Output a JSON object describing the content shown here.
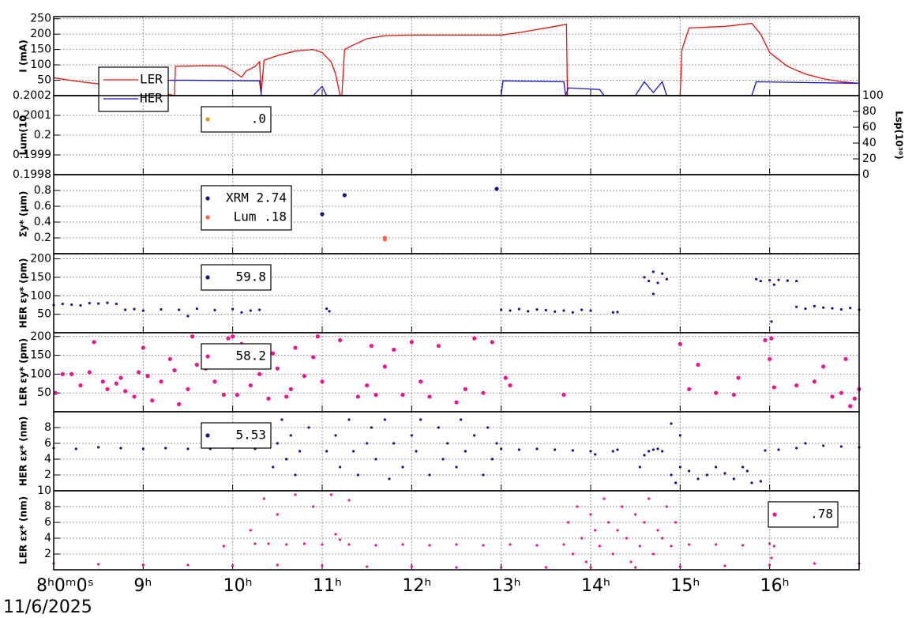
{
  "chart_data": [
    {
      "type": "line",
      "ylabel": "I (mA)",
      "ylim": [
        0,
        257
      ],
      "yticks": [
        50,
        100,
        150,
        200,
        250
      ],
      "grid": true,
      "legend": "lower left",
      "series": [
        {
          "name": "LER",
          "color": "#e8100c",
          "x": [
            8.0,
            8.3,
            8.6,
            8.9,
            9.2,
            9.35,
            9.36,
            9.7,
            9.9,
            10.0,
            10.1,
            10.15,
            10.25,
            10.3,
            10.32,
            10.35,
            10.5,
            10.7,
            10.9,
            11.0,
            11.1,
            11.15,
            11.2,
            11.22,
            11.25,
            11.35,
            11.5,
            11.7,
            12.0,
            12.5,
            13.0,
            13.2,
            13.4,
            13.6,
            13.73,
            13.74,
            14.5,
            15.0,
            15.02,
            15.1,
            15.5,
            15.8,
            15.9,
            16.0,
            16.2,
            16.4,
            16.6,
            16.8,
            17.0
          ],
          "values": [
            58,
            45,
            35,
            25,
            10,
            0,
            95,
            97,
            96,
            80,
            60,
            80,
            95,
            110,
            10,
            115,
            130,
            145,
            150,
            140,
            110,
            70,
            0,
            0,
            150,
            165,
            185,
            195,
            197,
            197,
            197,
            205,
            215,
            225,
            232,
            0,
            0,
            0,
            150,
            220,
            225,
            235,
            200,
            140,
            95,
            70,
            55,
            45,
            40
          ]
        },
        {
          "name": "HER",
          "color": "#1414c8",
          "x": [
            8.0,
            8.85,
            8.87,
            9.5,
            10.3,
            10.32,
            10.9,
            11.0,
            11.05,
            13.0,
            13.02,
            13.7,
            13.72,
            13.75,
            14.1,
            14.15,
            14.5,
            14.6,
            14.7,
            14.8,
            14.85,
            15.8,
            15.85,
            17.0
          ],
          "values": [
            0,
            0,
            50,
            50,
            48,
            0,
            0,
            30,
            0,
            0,
            48,
            45,
            0,
            25,
            20,
            0,
            0,
            45,
            10,
            45,
            0,
            0,
            45,
            40
          ]
        }
      ]
    },
    {
      "type": "scatter",
      "ylabel": "Lum(10",
      "ylim": [
        0.1998,
        0.2002
      ],
      "yticks": [
        0.1998,
        0.1999,
        0.2,
        0.2001,
        0.2002
      ],
      "y2label": "Lsp(10³⁰)",
      "y2lim": [
        0,
        100
      ],
      "y2ticks": [
        0,
        20,
        40,
        60,
        80,
        100
      ],
      "grid": true,
      "legend": "upper left",
      "series": [
        {
          "name": ".0",
          "color": "#d4a017",
          "x": [],
          "values": []
        }
      ]
    },
    {
      "type": "scatter",
      "ylabel": "Σy* (μm)",
      "ylim": [
        0,
        1
      ],
      "yticks": [
        0.2,
        0.4,
        0.6,
        0.8
      ],
      "grid": true,
      "legend": "upper left",
      "series": [
        {
          "name": "XRM 2.74",
          "color": "#14148c",
          "x": [
            11.0,
            11.25,
            12.95
          ],
          "values": [
            0.5,
            0.74,
            0.82
          ]
        },
        {
          "name": "Lum  .18",
          "color": "#ff6347",
          "x": [
            11.7,
            11.7
          ],
          "values": [
            0.18,
            0.2
          ]
        }
      ]
    },
    {
      "type": "scatter",
      "ylabel": "HER εy* (pm)",
      "ylim": [
        0,
        214
      ],
      "yticks": [
        50,
        100,
        150,
        200
      ],
      "grid": true,
      "legend": "upper left",
      "series": [
        {
          "name": "59.8",
          "color": "#14148c",
          "x": [
            8.0,
            8.1,
            8.2,
            8.3,
            8.4,
            8.5,
            8.6,
            8.7,
            8.8,
            8.9,
            9.0,
            9.2,
            9.4,
            9.6,
            9.8,
            10.0,
            10.2,
            10.3,
            11.05,
            11.08,
            13.0,
            13.1,
            13.2,
            13.3,
            13.4,
            13.5,
            13.6,
            13.7,
            13.8,
            13.9,
            14.0,
            14.25,
            14.3,
            14.6,
            14.65,
            14.7,
            14.75,
            14.8,
            14.85,
            14.7,
            15.85,
            15.9,
            16.0,
            16.05,
            16.1,
            16.2,
            16.3,
            16.02,
            16.3,
            16.4,
            16.5,
            16.6,
            16.7,
            16.8,
            16.9,
            17.0,
            9.5,
            10.1
          ],
          "values": [
            75,
            78,
            76,
            74,
            80,
            79,
            81,
            78,
            62,
            64,
            60,
            63,
            62,
            65,
            61,
            64,
            60,
            62,
            65,
            58,
            62,
            60,
            64,
            58,
            63,
            61,
            57,
            60,
            55,
            62,
            60,
            55,
            56,
            150,
            140,
            165,
            135,
            160,
            145,
            105,
            145,
            140,
            142,
            130,
            143,
            141,
            140,
            30,
            70,
            65,
            72,
            68,
            66,
            63,
            67,
            62,
            45,
            55
          ]
        }
      ]
    },
    {
      "type": "scatter",
      "ylabel": "LER εy* (pm)",
      "ylim": [
        0,
        210
      ],
      "yticks": [
        50,
        100,
        150,
        200
      ],
      "grid": true,
      "legend": "upper left",
      "series": [
        {
          "name": "58.2",
          "color": "#f0148c",
          "x": [
            8.02,
            8.1,
            8.2,
            8.3,
            8.4,
            8.45,
            8.55,
            8.6,
            8.7,
            8.75,
            8.8,
            8.9,
            8.95,
            9.0,
            9.05,
            9.1,
            9.2,
            9.3,
            9.35,
            9.4,
            9.5,
            9.55,
            9.6,
            9.7,
            9.8,
            9.9,
            9.95,
            10.0,
            10.05,
            10.1,
            10.2,
            10.25,
            10.3,
            10.4,
            10.45,
            10.5,
            10.6,
            10.65,
            10.7,
            10.8,
            10.9,
            10.95,
            11.0,
            11.2,
            11.4,
            11.5,
            11.55,
            11.6,
            11.7,
            11.8,
            11.9,
            12.0,
            12.1,
            12.2,
            12.3,
            12.5,
            12.6,
            12.7,
            12.8,
            12.9,
            13.05,
            13.1,
            13.7,
            15.0,
            15.1,
            15.2,
            15.4,
            15.6,
            15.65,
            15.95,
            16.0,
            16.02,
            16.05,
            16.3,
            16.5,
            16.6,
            16.7,
            16.8,
            16.85,
            16.9,
            16.95,
            17.0
          ],
          "values": [
            50,
            100,
            100,
            70,
            105,
            185,
            80,
            60,
            75,
            90,
            55,
            40,
            105,
            170,
            95,
            30,
            80,
            140,
            110,
            20,
            60,
            200,
            125,
            115,
            80,
            45,
            195,
            200,
            45,
            180,
            70,
            150,
            100,
            35,
            155,
            115,
            40,
            60,
            170,
            95,
            145,
            200,
            80,
            190,
            40,
            70,
            175,
            45,
            120,
            165,
            45,
            185,
            80,
            40,
            175,
            25,
            60,
            195,
            50,
            185,
            90,
            70,
            45,
            180,
            60,
            125,
            50,
            45,
            90,
            190,
            140,
            195,
            65,
            70,
            80,
            120,
            40,
            50,
            140,
            15,
            35,
            60
          ]
        }
      ]
    },
    {
      "type": "scatter",
      "ylabel": "HER εx* (nm)",
      "ylim": [
        0,
        10
      ],
      "yticks": [
        2,
        4,
        6,
        8
      ],
      "grid": true,
      "legend": "upper left",
      "series": [
        {
          "name": "5.53",
          "color": "#14148c",
          "x": [
            8.0,
            8.25,
            8.5,
            8.75,
            9.0,
            9.25,
            9.5,
            9.75,
            10.0,
            10.25,
            10.4,
            10.45,
            10.5,
            10.55,
            10.6,
            10.65,
            10.7,
            10.75,
            10.85,
            11.05,
            11.15,
            11.2,
            11.3,
            11.35,
            11.4,
            11.5,
            11.55,
            11.6,
            11.7,
            11.75,
            11.8,
            11.9,
            12.0,
            12.05,
            12.1,
            12.2,
            12.3,
            12.35,
            12.4,
            12.5,
            12.55,
            12.6,
            12.7,
            12.8,
            12.85,
            12.9,
            12.95,
            13.0,
            13.2,
            13.4,
            13.6,
            13.8,
            14.0,
            14.05,
            14.25,
            14.3,
            14.55,
            14.6,
            14.65,
            14.7,
            14.75,
            14.8,
            14.9,
            14.95,
            15.0,
            15.1,
            15.2,
            15.3,
            15.4,
            15.5,
            15.6,
            15.7,
            15.75,
            15.8,
            15.9,
            14.9,
            15.0,
            15.95,
            16.1,
            16.3,
            16.4,
            16.6,
            16.8,
            17.0
          ],
          "values": [
            5.4,
            5.3,
            5.5,
            5.4,
            5.3,
            5.4,
            5.3,
            5.3,
            5.4,
            5.3,
            8.5,
            3,
            6,
            9,
            4,
            7,
            2,
            5,
            8,
            5,
            7,
            3,
            9,
            5,
            2,
            6,
            8,
            4,
            9,
            1.5,
            6,
            3,
            7,
            5,
            9,
            2,
            8,
            4,
            6,
            3,
            9,
            5,
            7,
            2,
            8,
            4,
            6,
            5.3,
            5.2,
            5.3,
            5.2,
            5.1,
            5.0,
            4.6,
            5,
            5.2,
            3,
            4.5,
            5,
            5.2,
            5.3,
            5,
            2,
            1,
            3,
            2.5,
            1.5,
            2,
            3,
            2.2,
            1.5,
            3,
            2.5,
            1,
            1.2,
            8.5,
            7,
            5.1,
            5.2,
            5.4,
            6,
            5.7,
            5.6,
            5.5
          ]
        }
      ]
    },
    {
      "type": "scatter",
      "ylabel": "LER εx* (nm)",
      "ylim": [
        0,
        10
      ],
      "yticks": [
        2,
        4,
        6,
        8,
        10
      ],
      "grid": true,
      "legend": "upper right",
      "xlim": [
        8,
        17
      ],
      "xticks": [
        {
          "value": 8,
          "label": "8ʰ0ᵐ0ˢ"
        },
        {
          "value": 9,
          "label": "9ʰ"
        },
        {
          "value": 10,
          "label": "10ʰ"
        },
        {
          "value": 11,
          "label": "11ʰ"
        },
        {
          "value": 12,
          "label": "12ʰ"
        },
        {
          "value": 13,
          "label": "13ʰ"
        },
        {
          "value": 14,
          "label": "14ʰ"
        },
        {
          "value": 15,
          "label": "15ʰ"
        },
        {
          "value": 16,
          "label": "16ʰ"
        }
      ],
      "xlabel": "11/6/2025",
      "series": [
        {
          "name": ".78",
          "color": "#f0148c",
          "x": [
            8.0,
            8.5,
            9.0,
            9.5,
            10.0,
            10.5,
            11.0,
            11.5,
            12.0,
            12.5,
            13.0,
            13.5,
            14.0,
            14.5,
            15.0,
            15.5,
            16.0,
            16.5,
            17.0,
            10.25,
            10.4,
            10.6,
            10.8,
            11.0,
            11.15,
            11.2,
            11.3,
            11.6,
            11.9,
            12.2,
            12.5,
            12.8,
            13.1,
            13.4,
            13.7,
            9.9,
            10.2,
            10.35,
            10.5,
            10.7,
            10.9,
            11.1,
            11.3,
            13.75,
            13.8,
            13.85,
            13.9,
            13.95,
            14.0,
            14.05,
            14.1,
            14.15,
            14.2,
            14.25,
            14.3,
            14.35,
            14.4,
            14.45,
            14.5,
            14.55,
            14.6,
            14.65,
            14.7,
            14.75,
            14.8,
            14.85,
            14.9,
            14.95,
            15.1,
            15.4,
            15.7,
            16.0,
            16.02,
            16.05
          ],
          "values": [
            0.8,
            0.7,
            0.6,
            0.6,
            0.5,
            0.6,
            0.5,
            0.4,
            0.4,
            0.3,
            0.3,
            0.3,
            0.3,
            0.3,
            0.4,
            0.5,
            0.6,
            0.8,
            0.8,
            3.3,
            3.3,
            3.2,
            3.3,
            3.2,
            4.5,
            3.8,
            3.2,
            3.1,
            3.2,
            3.1,
            3.2,
            3.1,
            3.2,
            3.1,
            3.2,
            3,
            5,
            9,
            7,
            9.5,
            8,
            9.5,
            8.8,
            6,
            2,
            8,
            4,
            1,
            7,
            5,
            3,
            9,
            6,
            2,
            5,
            8,
            4,
            1,
            7,
            3,
            6,
            9,
            2,
            5,
            4,
            8,
            3,
            6,
            3.2,
            3.2,
            3.1,
            3.3,
            1.5,
            3
          ]
        }
      ]
    }
  ]
}
